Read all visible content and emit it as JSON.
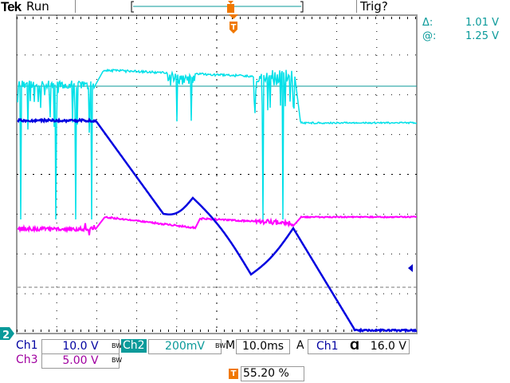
{
  "header": {
    "brand": "Tek",
    "state": "Run",
    "trigger_status": "Trig?"
  },
  "measurements": [
    {
      "label": "Δ:",
      "value": "1.01 V"
    },
    {
      "label": "@:",
      "value": "1.25 V"
    }
  ],
  "channels": {
    "ch1": {
      "label": "Ch1",
      "scale": "10.0 V",
      "bw": "BW",
      "color": "#0000c8"
    },
    "ch2": {
      "label": "Ch2",
      "scale": "200mV",
      "bw": "BW",
      "color": "#00c8d8"
    },
    "ch3": {
      "label": "Ch3",
      "scale": "5.00 V",
      "bw": "BW",
      "color": "#c800c8"
    }
  },
  "timebase": {
    "label": "M",
    "value": "10.0ms"
  },
  "trigger": {
    "mode": "A",
    "source": "Ch1",
    "slope_icon": "falling-edge",
    "level": "16.0 V",
    "marker": "T"
  },
  "trigger_position": {
    "marker": "T",
    "value": "55.20 %"
  },
  "channel_marker": "2"
}
